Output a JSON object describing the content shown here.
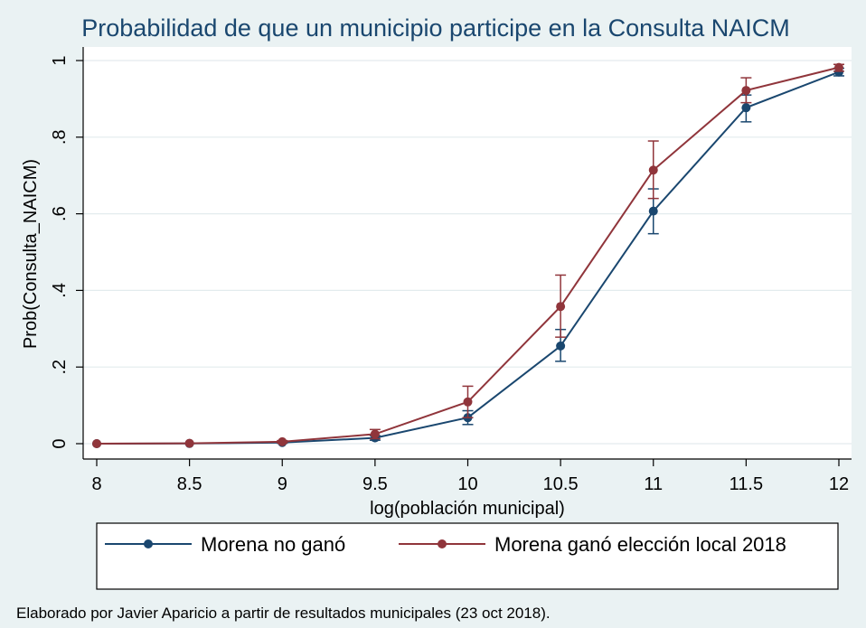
{
  "chart_data": {
    "type": "line",
    "title": "Probabilidad de que un municipio participe en la Consulta NAICM",
    "xlabel": "log(población municipal)",
    "ylabel": "Prob(Consulta_NAICM)",
    "xlim": [
      8,
      12
    ],
    "ylim": [
      0,
      1
    ],
    "xticks": [
      8,
      8.5,
      9,
      9.5,
      10,
      10.5,
      11,
      11.5,
      12
    ],
    "xtick_labels": [
      "8",
      "8.5",
      "9",
      "9.5",
      "10",
      "10.5",
      "11",
      "11.5",
      "12"
    ],
    "yticks": [
      0,
      0.2,
      0.4,
      0.6,
      0.8,
      1
    ],
    "ytick_labels": [
      "0",
      ".2",
      ".4",
      ".6",
      ".8",
      "1"
    ],
    "grid": true,
    "legend_position": "bottom",
    "series": [
      {
        "name": "Morena no ganó",
        "color": "#1a476f",
        "x": [
          8,
          8.5,
          9,
          9.5,
          10,
          10.5,
          11,
          11.5,
          12
        ],
        "y": [
          0.0,
          0.0005,
          0.003,
          0.015,
          0.068,
          0.255,
          0.607,
          0.877,
          0.97
        ],
        "ci_low": [
          0.0,
          0.0,
          0.001,
          0.009,
          0.05,
          0.215,
          0.548,
          0.84,
          0.96
        ],
        "ci_high": [
          0.0,
          0.001,
          0.005,
          0.021,
          0.086,
          0.298,
          0.665,
          0.91,
          0.98
        ]
      },
      {
        "name": "Morena ganó elección local 2018",
        "color": "#90353b",
        "x": [
          8,
          8.5,
          9,
          9.5,
          10,
          10.5,
          11,
          11.5,
          12
        ],
        "y": [
          0.0,
          0.001,
          0.005,
          0.025,
          0.109,
          0.358,
          0.714,
          0.922,
          0.982
        ],
        "ci_low": [
          0.0,
          0.0,
          0.002,
          0.013,
          0.068,
          0.278,
          0.64,
          0.89,
          0.972
        ],
        "ci_high": [
          0.0,
          0.002,
          0.008,
          0.037,
          0.15,
          0.44,
          0.79,
          0.955,
          0.99
        ]
      }
    ]
  },
  "footnote": "Elaborado por Javier Aparicio a partir de resultados municipales (23 oct 2018)."
}
